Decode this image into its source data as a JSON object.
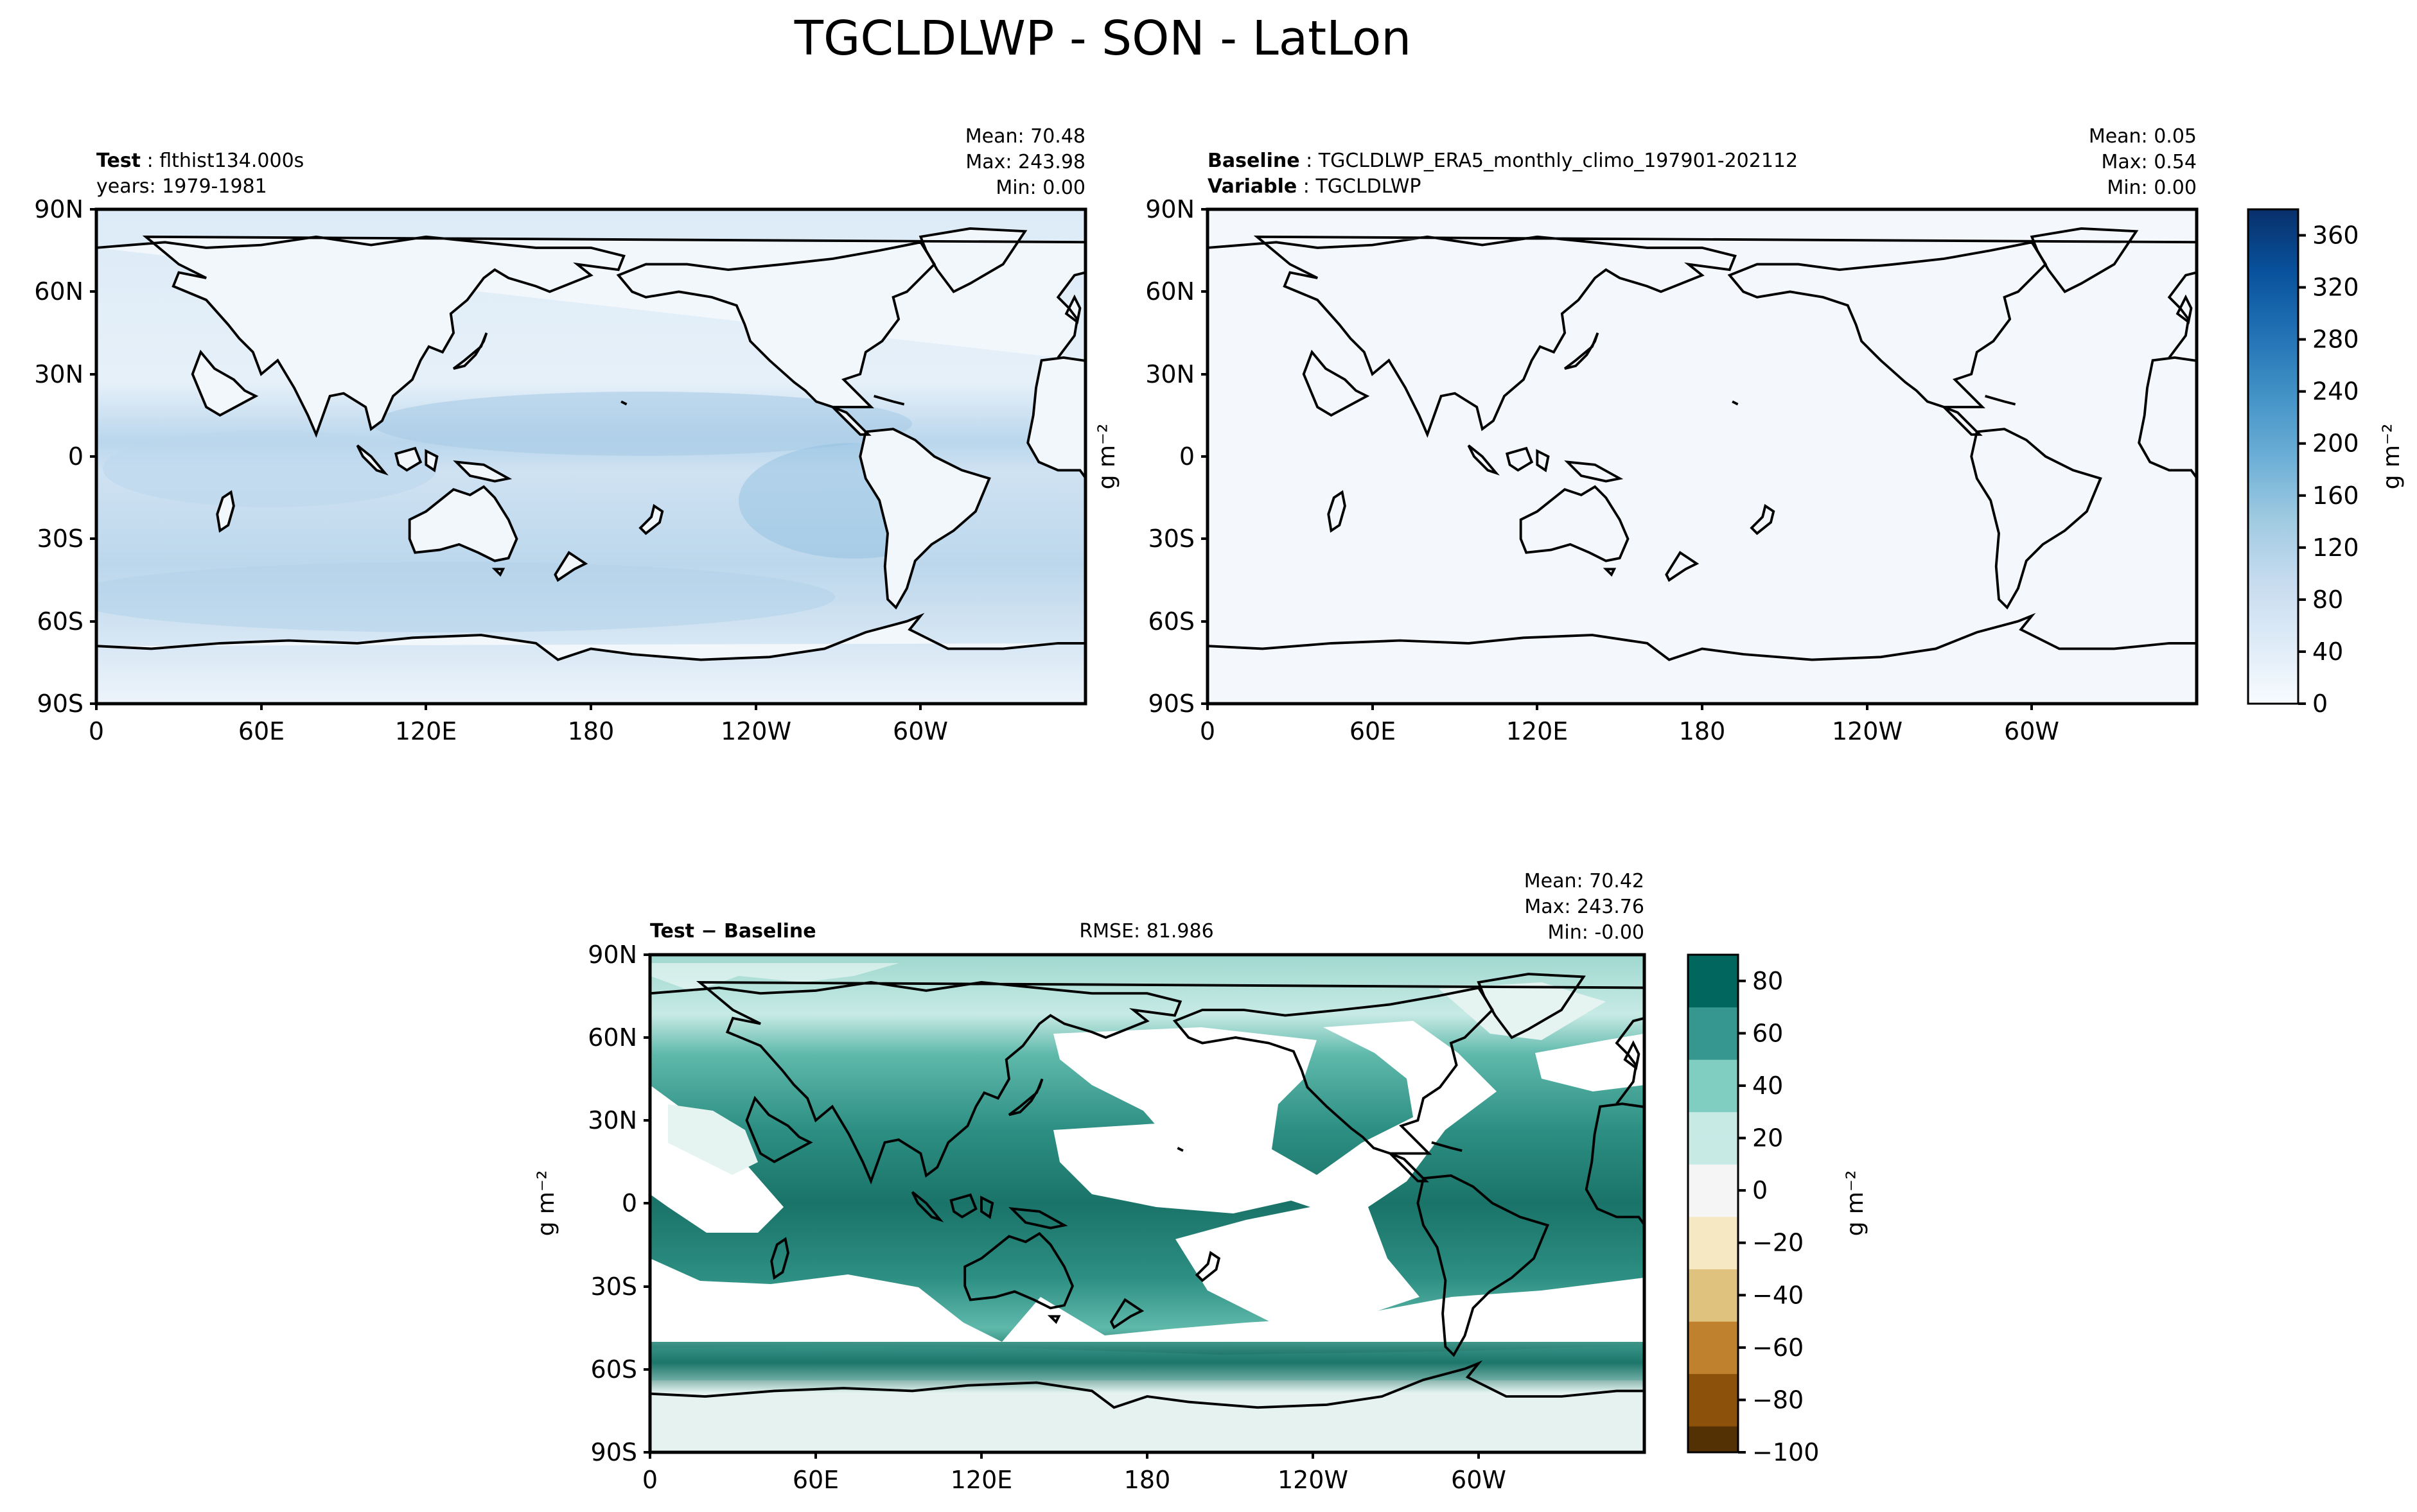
{
  "figure": {
    "title": "TGCLDLWP - SON - LatLon"
  },
  "colors": {
    "land_outline": "#000000",
    "ocean_background": "#f4f8fc",
    "blues_colormap": [
      "#f7fbff",
      "#deebf7",
      "#c6dbef",
      "#9ecae1",
      "#6baed6",
      "#4292c6",
      "#2171b5",
      "#08519c",
      "#08306b"
    ],
    "brbg_colormap": [
      "#543005",
      "#8c510a",
      "#bf812d",
      "#dfc27d",
      "#f6e8c3",
      "#f5f5f5",
      "#c7eae5",
      "#80cdc1",
      "#35978f",
      "#01665e",
      "#003c30"
    ]
  },
  "panels": {
    "test": {
      "label_bold": "Test",
      "label_value": "flthist134.000s",
      "years_label": "years: 1979-1981",
      "stats": {
        "mean": "Mean: 70.48",
        "max": "Max: 243.98",
        "min": "Min:  0.00"
      }
    },
    "baseline": {
      "baseline_bold": "Baseline",
      "baseline_value": "TGCLDLWP_ERA5_monthly_climo_197901-202112",
      "variable_bold": "Variable",
      "variable_value": "TGCLDLWP",
      "stats": {
        "mean": "Mean:  0.05",
        "max": "Max:  0.54",
        "min": "Min:  0.00"
      },
      "ylabel": "g m⁻²"
    },
    "diff": {
      "label_bold": "Test − Baseline",
      "rmse": "RMSE: 81.986",
      "stats": {
        "mean": "Mean: 70.42",
        "max": "Max: 243.76",
        "min": "Min: -0.00"
      },
      "ylabel": "g m⁻²"
    }
  },
  "colorbars": {
    "blues": {
      "label": "g m⁻²",
      "ticks": [
        "0",
        "40",
        "80",
        "120",
        "160",
        "200",
        "240",
        "280",
        "320",
        "360"
      ]
    },
    "diff": {
      "label": "g m⁻²",
      "ticks": [
        "80",
        "60",
        "40",
        "20",
        "0",
        "−20",
        "−40",
        "−60",
        "−80",
        "−100"
      ]
    }
  },
  "chart_data": [
    {
      "type": "heatmap",
      "title": "TGCLDLWP - SON - LatLon",
      "panel": "Test: flthist134.000s (years: 1979-1981)",
      "projection": "PlateCarree, central longitude 180",
      "x_tick_labels": [
        "0",
        "60E",
        "120E",
        "180",
        "120W",
        "60W"
      ],
      "y_tick_labels": [
        "90N",
        "60N",
        "30N",
        "0",
        "30S",
        "60S",
        "90S"
      ],
      "xlim": [
        0,
        360
      ],
      "ylim": [
        -90,
        90
      ],
      "colormap": "Blues",
      "clim": [
        0,
        380
      ],
      "units": "g m⁻²",
      "mean": 70.48,
      "max": 243.98,
      "min": 0.0
    },
    {
      "type": "heatmap",
      "panel": "Baseline: TGCLDLWP_ERA5_monthly_climo_197901-202112",
      "variable": "TGCLDLWP",
      "projection": "PlateCarree, central longitude 180",
      "x_tick_labels": [
        "0",
        "60E",
        "120E",
        "180",
        "120W",
        "60W"
      ],
      "y_tick_labels": [
        "90N",
        "60N",
        "30N",
        "0",
        "30S",
        "60S",
        "90S"
      ],
      "xlim": [
        0,
        360
      ],
      "ylim": [
        -90,
        90
      ],
      "colormap": "Blues",
      "clim": [
        0,
        380
      ],
      "units": "g m⁻²",
      "mean": 0.05,
      "max": 0.54,
      "min": 0.0
    },
    {
      "type": "heatmap",
      "panel": "Test − Baseline",
      "projection": "PlateCarree, central longitude 180",
      "x_tick_labels": [
        "0",
        "60E",
        "120E",
        "180",
        "120W",
        "60W"
      ],
      "y_tick_labels": [
        "90N",
        "60N",
        "30N",
        "0",
        "30S",
        "60S",
        "90S"
      ],
      "xlim": [
        0,
        360
      ],
      "ylim": [
        -90,
        90
      ],
      "colormap": "BrBG",
      "clim": [
        -100,
        90
      ],
      "units": "g m⁻²",
      "rmse": 81.986,
      "mean": 70.42,
      "max": 243.76,
      "min": -0.0
    }
  ]
}
